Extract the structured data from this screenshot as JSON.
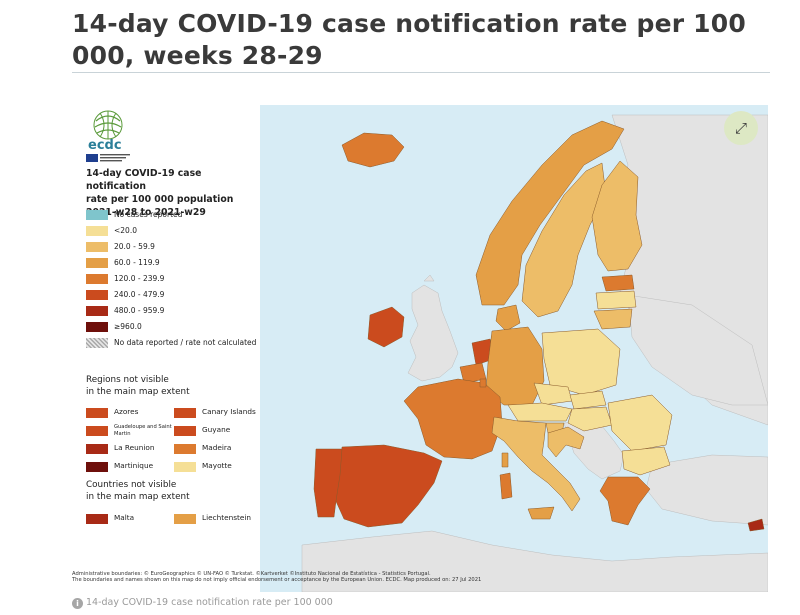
{
  "page": {
    "title": "14-day COVID-19 case notification rate per 100 000, weeks 28-29",
    "caption": "14-day COVID-19 case notification rate per 100 000",
    "caption_icon": "info-icon"
  },
  "map": {
    "fullscreen_icon": "expand-arrows-icon",
    "fullscreen_glyph": "⤢",
    "logo": {
      "wordmark": "ecdc",
      "agency": "EUROPEAN CENTRE FOR DISEASE PREVENTION AND CONTROL"
    },
    "legend": {
      "title_line1": "14-day COVID-19 case notification",
      "title_line2": "rate per 100 000 population",
      "title_line3": "2021-w28 to 2021-w29",
      "classes": [
        {
          "label": "No cases reported",
          "color": "#7fc5cc"
        },
        {
          "label": "<20.0",
          "color": "#f5df96"
        },
        {
          "label": "20.0 - 59.9",
          "color": "#edbd68"
        },
        {
          "label": "60.0 - 119.9",
          "color": "#e49f46"
        },
        {
          "label": "120.0 - 239.9",
          "color": "#dc7a2f"
        },
        {
          "label": "240.0 - 479.9",
          "color": "#cb4b1e"
        },
        {
          "label": "480.0 - 959.9",
          "color": "#a82a16"
        },
        {
          "label": "≥960.0",
          "color": "#6e0f0b"
        },
        {
          "label": "No data reported / rate not calculated",
          "color": "hatched"
        }
      ],
      "regions_heading_line1": "Regions not visible",
      "regions_heading_line2": "in the main map extent",
      "regions": [
        {
          "label": "Azores",
          "color": "#cb4b1e"
        },
        {
          "label": "Canary Islands",
          "color": "#cb4b1e"
        },
        {
          "label": "Guadeloupe and Saint Martin",
          "color": "#cb4b1e"
        },
        {
          "label": "Guyane",
          "color": "#cb4b1e"
        },
        {
          "label": "La Reunion",
          "color": "#a82a16"
        },
        {
          "label": "Madeira",
          "color": "#dc7a2f"
        },
        {
          "label": "Martinique",
          "color": "#6e0f0b"
        },
        {
          "label": "Mayotte",
          "color": "#f5df96"
        }
      ],
      "countries_heading_line1": "Countries not visible",
      "countries_heading_line2": "in the main map extent",
      "countries": [
        {
          "label": "Malta",
          "color": "#a82a16"
        },
        {
          "label": "Liechtenstein",
          "color": "#e49f46"
        }
      ]
    },
    "footer_line1": "Administrative boundaries: © EuroGeographics © UN-FAO © Turkstat. ©Kartverket ©Instituto Nacional de Estatística - Statistics Portugal.",
    "footer_line2": "The boundaries and names shown on this map do not imply official endorsement or acceptance by the European Union. ECDC. Map produced on: 27 Jul 2021",
    "colors": {
      "sea": "#d7ecf5",
      "non_eu": "#e3e3e3",
      "border": "#8a5a2a"
    },
    "countries_fill": {
      "iceland": "#dc7a2f",
      "ireland": "#cb4b1e",
      "norway": "#e49f46",
      "sweden": "#edbd68",
      "finland": "#edbd68",
      "estonia": "#dc7a2f",
      "latvia": "#f5df96",
      "lithuania": "#edbd68",
      "poland": "#f5df96",
      "germany": "#e49f46",
      "denmark": "#e49f46",
      "netherlands": "#cb4b1e",
      "belgium": "#dc7a2f",
      "luxembourg": "#dc7a2f",
      "france": "#dc7a2f",
      "spain": "#cb4b1e",
      "portugal": "#cb4b1e",
      "italy": "#edbd68",
      "austria": "#f5df96",
      "czechia": "#f5df96",
      "slovakia": "#f5df96",
      "hungary": "#f5df96",
      "slovenia": "#edbd68",
      "croatia": "#edbd68",
      "romania": "#f5df96",
      "bulgaria": "#f5df96",
      "greece": "#dc7a2f",
      "cyprus": "#a82a16",
      "sardinia": "#dc7a2f",
      "sicily": "#e49f46",
      "corsica": "#e49f46"
    }
  }
}
